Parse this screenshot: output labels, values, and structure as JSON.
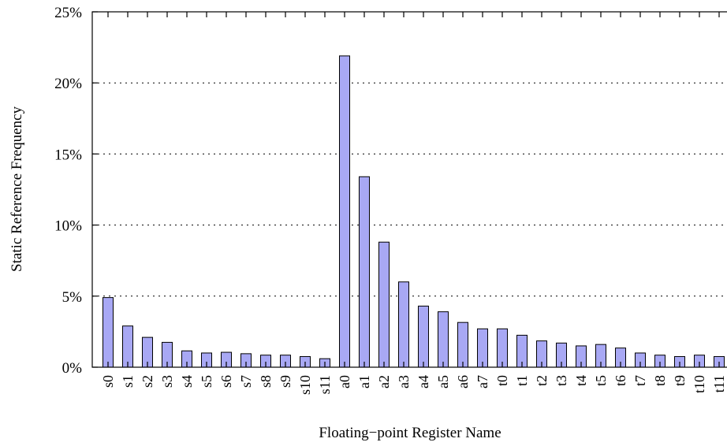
{
  "chart_data": {
    "type": "bar",
    "xlabel": "Floating−point Register Name",
    "ylabel": "Static Reference Frequency",
    "ylim": [
      0,
      25
    ],
    "yticks": [
      0,
      5,
      10,
      15,
      20,
      25
    ],
    "ytick_labels": [
      "0%",
      "5%",
      "10%",
      "15%",
      "20%",
      "25%"
    ],
    "grid": "horizontal dotted",
    "bar_color": "#a8a8f4",
    "categories": [
      "s0",
      "s1",
      "s2",
      "s3",
      "s4",
      "s5",
      "s6",
      "s7",
      "s8",
      "s9",
      "s10",
      "s11",
      "a0",
      "a1",
      "a2",
      "a3",
      "a4",
      "a5",
      "a6",
      "a7",
      "t0",
      "t1",
      "t2",
      "t3",
      "t4",
      "t5",
      "t6",
      "t7",
      "t8",
      "t9",
      "t10",
      "t11"
    ],
    "values": [
      4.9,
      2.9,
      2.1,
      1.75,
      1.15,
      1.0,
      1.05,
      0.95,
      0.85,
      0.85,
      0.75,
      0.6,
      21.9,
      13.4,
      8.8,
      6.0,
      4.3,
      3.9,
      3.15,
      2.7,
      2.7,
      2.25,
      1.85,
      1.7,
      1.5,
      1.6,
      1.35,
      1.0,
      0.85,
      0.75,
      0.85,
      0.75
    ]
  }
}
